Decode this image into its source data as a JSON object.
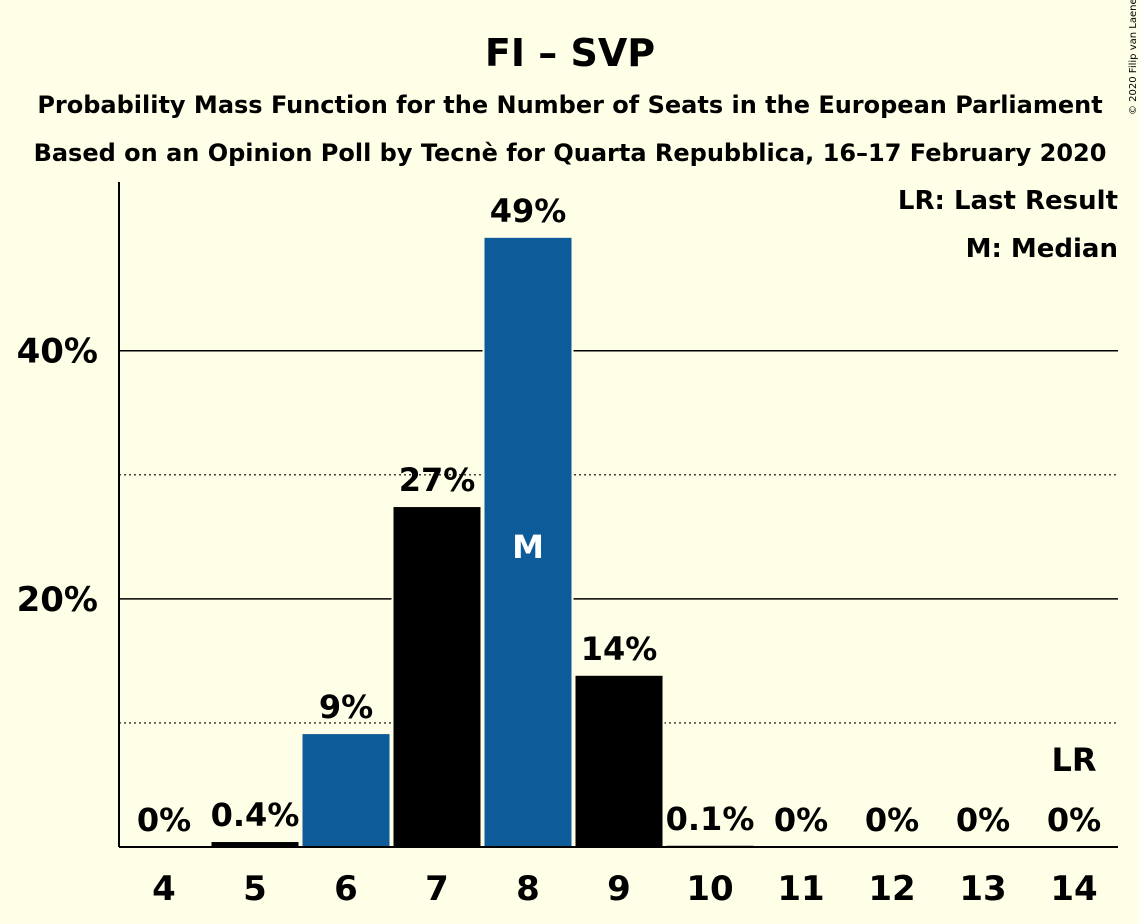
{
  "title": "FI – SVP",
  "subtitle_lines": [
    "Probability Mass Function for the Number of Seats in the European Parliament",
    "Based on an Opinion Poll by Tecnè for Quarta Repubblica, 16–17 February 2020"
  ],
  "copyright": "© 2020 Filip van Laenen",
  "legend": {
    "last_result": "LR: Last Result",
    "median": "M: Median"
  },
  "colors": {
    "background": "#FFFEE6",
    "blue": "#0E5B99",
    "black": "#000000"
  },
  "chart_data": {
    "type": "bar",
    "title": "FI – SVP",
    "categories": [
      "4",
      "5",
      "6",
      "7",
      "8",
      "9",
      "10",
      "11",
      "12",
      "13",
      "14"
    ],
    "values": [
      0,
      0.4,
      9.1,
      27.4,
      49.1,
      13.8,
      0.1,
      0,
      0,
      0,
      0
    ],
    "data_labels": [
      "0%",
      "0.4%",
      "9%",
      "27%",
      "49%",
      "14%",
      "0.1%",
      "0%",
      "0%",
      "0%",
      "0%"
    ],
    "bar_colors": [
      "black",
      "black",
      "blue",
      "black",
      "blue",
      "black",
      "black",
      "black",
      "black",
      "black",
      "black"
    ],
    "ylim": [
      0,
      53.6
    ],
    "yticks": [
      {
        "value": 20,
        "label": "20%"
      },
      {
        "value": 40,
        "label": "40%"
      }
    ],
    "minor_gridlines": [
      10,
      30
    ],
    "median_category": "8",
    "median_label": "M",
    "last_result_category": "14",
    "last_result_label": "LR",
    "xlabel": "",
    "ylabel": ""
  }
}
